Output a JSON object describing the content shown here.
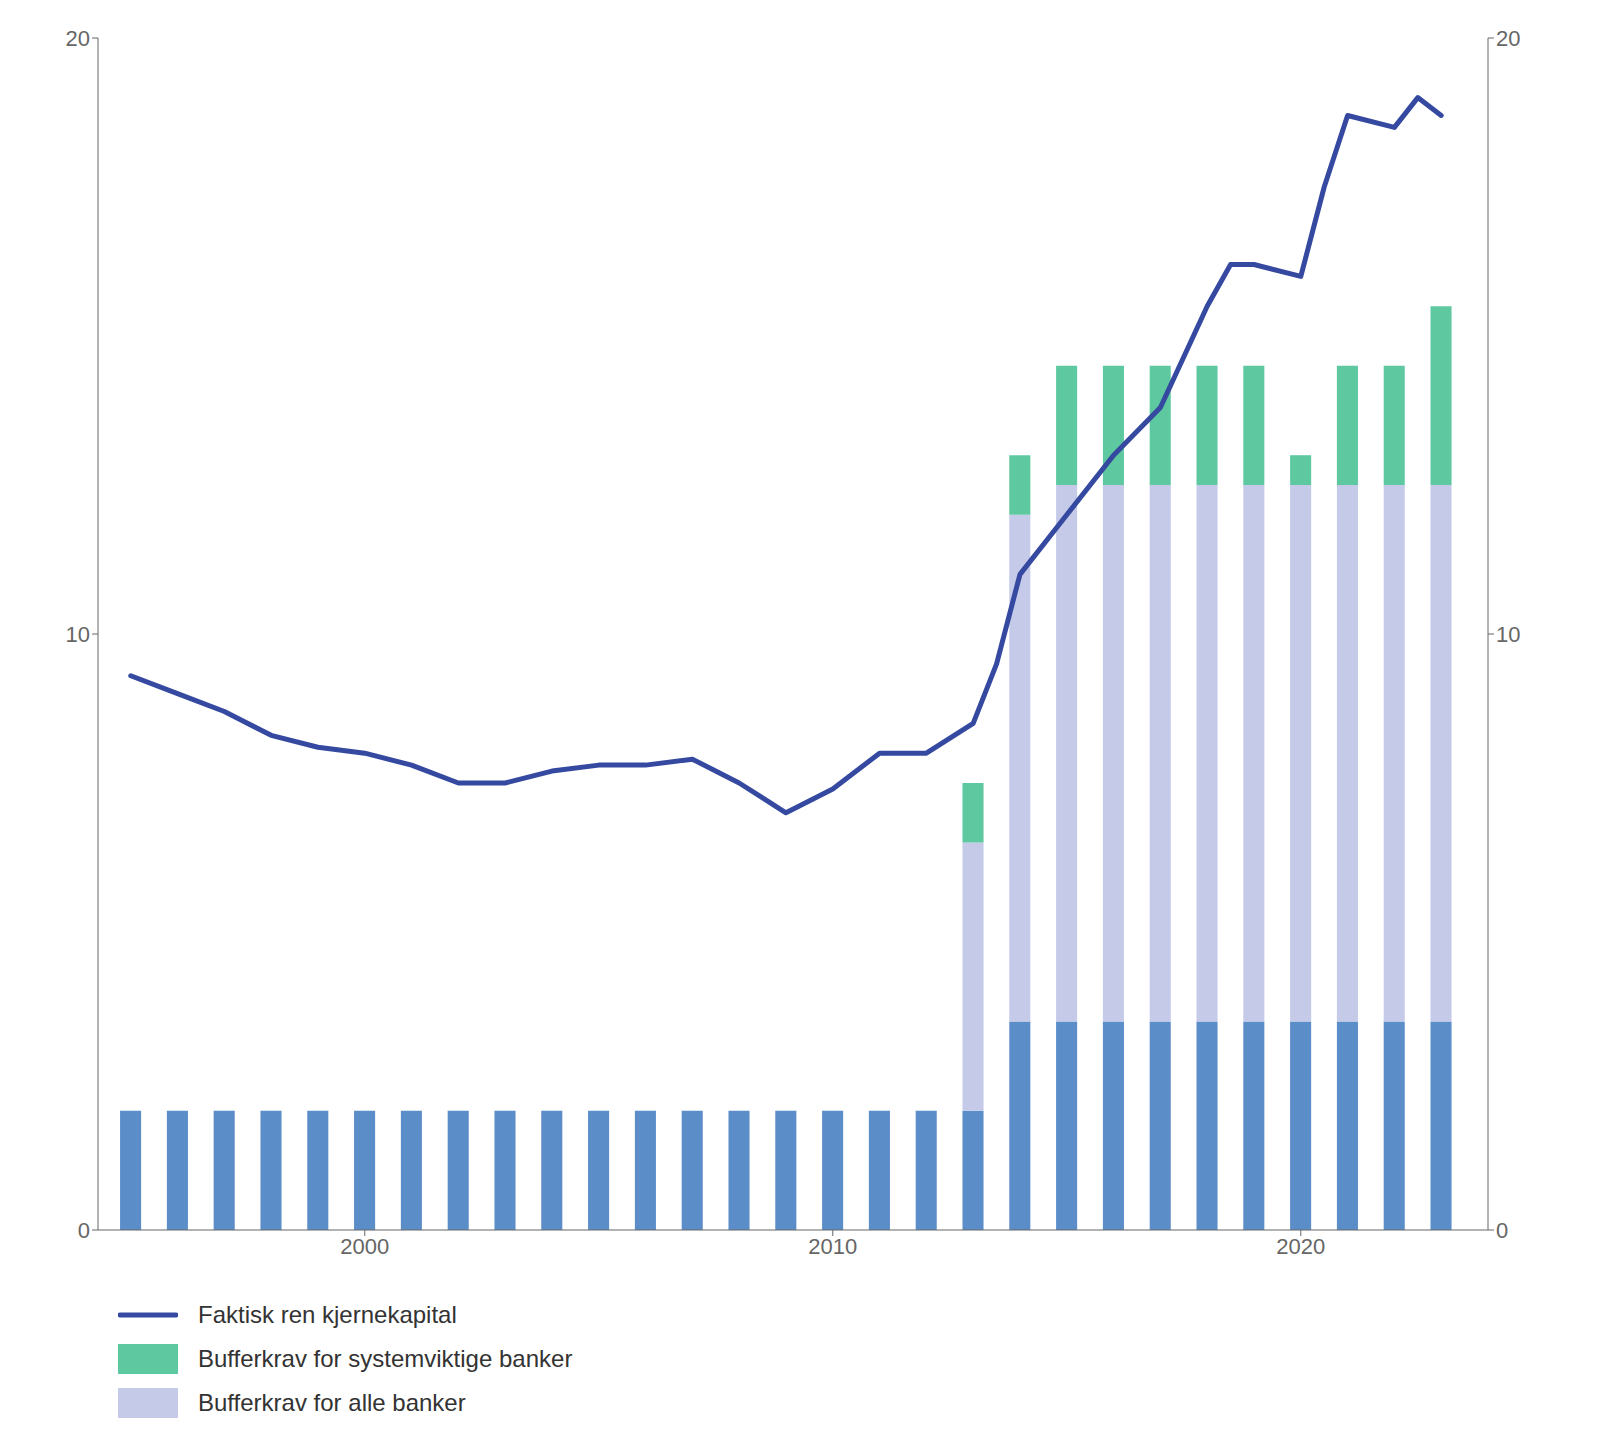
{
  "chart_data": {
    "type": "bar",
    "stacked": true,
    "legend": "bottom",
    "xlim": [
      1994.3,
      2024.0
    ],
    "xticks": [
      2000,
      2010,
      2020
    ],
    "ylim": [
      0,
      20
    ],
    "yticks": [
      0,
      10,
      20
    ],
    "y2lim": [
      0,
      20
    ],
    "y2ticks": [
      0,
      10,
      20
    ],
    "series": [
      {
        "type": "bar",
        "color": "#5b8dc8",
        "x": [
          1995,
          1996,
          1997,
          1998,
          1999,
          2000,
          2001,
          2002,
          2003,
          2004,
          2005,
          2006,
          2007,
          2008,
          2009,
          2010,
          2011,
          2012,
          2013,
          2014,
          2015,
          2016,
          2017,
          2018,
          2019,
          2020,
          2021,
          2022,
          2023
        ],
        "values": [
          2.0,
          2.0,
          2.0,
          2.0,
          2.0,
          2.0,
          2.0,
          2.0,
          2.0,
          2.0,
          2.0,
          2.0,
          2.0,
          2.0,
          2.0,
          2.0,
          2.0,
          2.0,
          2.0,
          3.5,
          3.5,
          3.5,
          3.5,
          3.5,
          3.5,
          3.5,
          3.5,
          3.5,
          3.5
        ]
      },
      {
        "name": "Bufferkrav for alle banker",
        "type": "bar",
        "color": "#c5cae9",
        "x": [
          2013,
          2014,
          2015,
          2016,
          2017,
          2018,
          2019,
          2020,
          2021,
          2022,
          2023
        ],
        "values": [
          4.5,
          8.5,
          9.0,
          9.0,
          9.0,
          9.0,
          9.0,
          9.0,
          9.0,
          9.0,
          9.0
        ]
      },
      {
        "name": "Bufferkrav for systemviktige banker",
        "type": "bar",
        "color": "#5ec8a0",
        "x": [
          2013,
          2014,
          2015,
          2016,
          2017,
          2018,
          2019,
          2020,
          2021,
          2022,
          2023
        ],
        "values": [
          1.0,
          1.0,
          2.0,
          2.0,
          2.0,
          2.0,
          2.0,
          0.5,
          2.0,
          2.0,
          3.0
        ]
      },
      {
        "name": "Faktisk ren kjernekapital",
        "type": "line",
        "color": "#3549a0",
        "x": [
          1995,
          1996,
          1997,
          1998,
          1999,
          2000,
          2001,
          2002,
          2003,
          2004,
          2005,
          2006,
          2007,
          2008,
          2009,
          2010,
          2011,
          2012,
          2013,
          2013.5,
          2014,
          2015,
          2016,
          2017,
          2018,
          2018.5,
          2019,
          2020,
          2020.5,
          2021,
          2022,
          2022.5,
          2023
        ],
        "values": [
          9.3,
          9.0,
          8.7,
          8.3,
          8.1,
          8.0,
          7.8,
          7.5,
          7.5,
          7.7,
          7.8,
          7.8,
          7.9,
          7.5,
          7.0,
          7.4,
          8.0,
          8.0,
          8.5,
          9.5,
          11.0,
          12.0,
          13.0,
          13.8,
          15.5,
          16.2,
          16.2,
          16.0,
          17.5,
          18.7,
          18.5,
          19.0,
          18.7
        ]
      }
    ]
  }
}
